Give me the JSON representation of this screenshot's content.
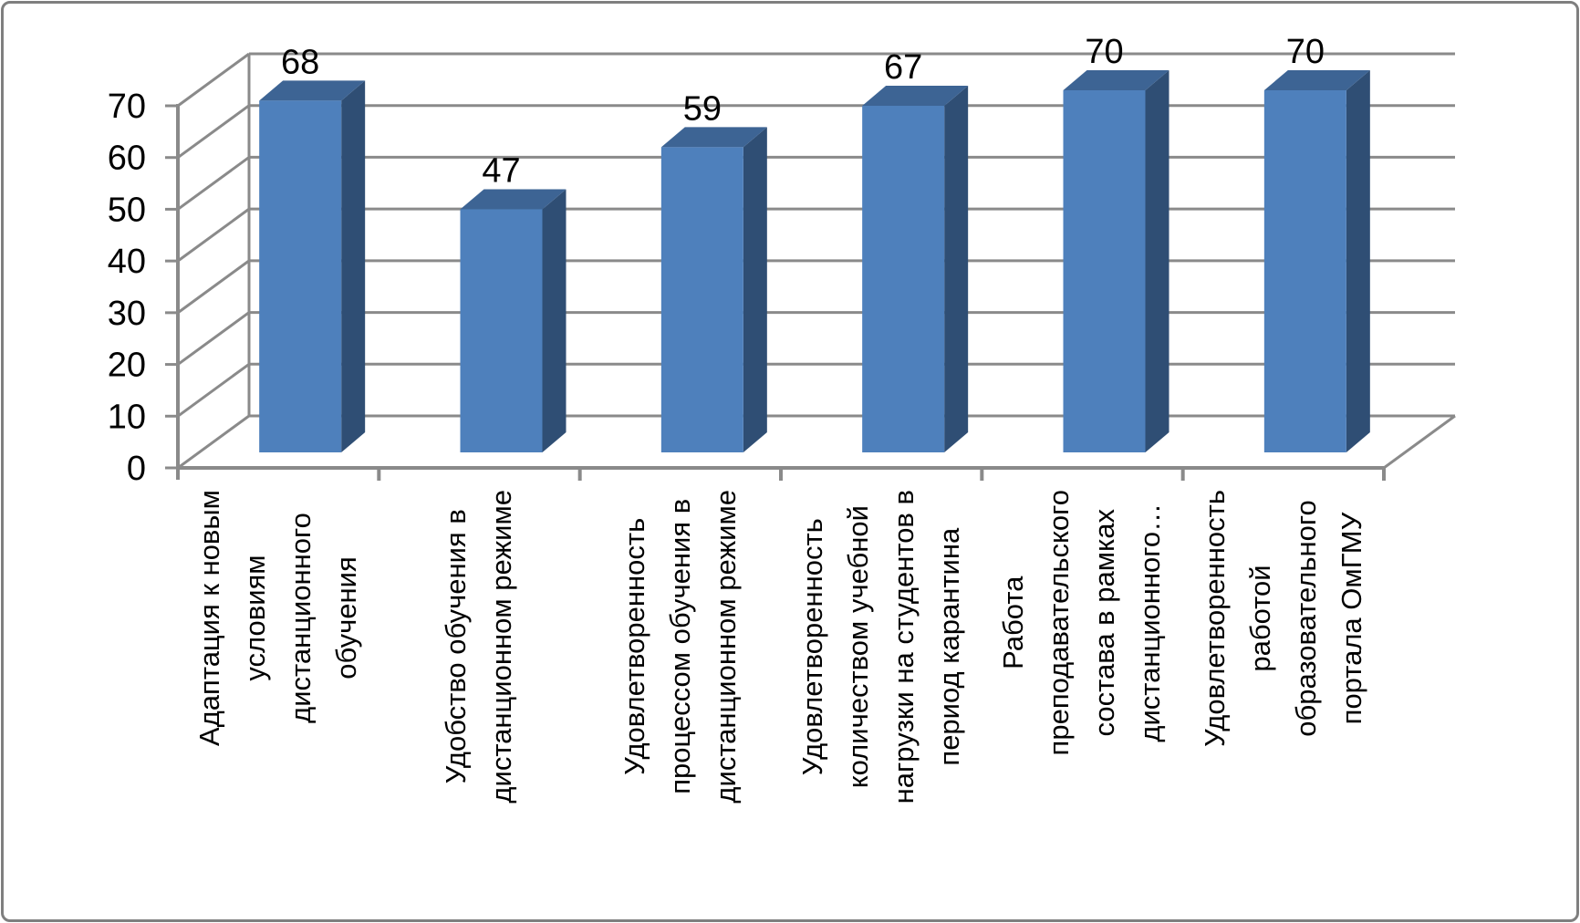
{
  "chart_data": {
    "type": "bar",
    "style": "3d-column",
    "title": "",
    "xlabel": "",
    "ylabel": "",
    "ylim": [
      0,
      70
    ],
    "ytick_step": 10,
    "y_ticks": [
      0,
      10,
      20,
      30,
      40,
      50,
      60,
      70
    ],
    "grid": true,
    "legend": false,
    "data_labels_shown": true,
    "categories": [
      "Адаптация к новым условиям дистанционного обучения",
      "Удобство обучения в дистанционном режиме",
      "Удовлетворенность процессом обучения в дистанционном режиме",
      "Удовлетворенность количеством учебной нагрузки на студентов в период карантина",
      "Работа преподавательского состава в рамках дистанционного…",
      "Удовлетворенность работой образовательного портала ОмГМУ"
    ],
    "categories_lines": [
      [
        "Адаптация к новым",
        "условиям",
        "дистанционного",
        "обучения"
      ],
      [
        "Удобство обучения в",
        "дистанционном режиме"
      ],
      [
        "Удовлетворенность",
        "процессом обучения в",
        "дистанционном режиме"
      ],
      [
        "Удовлетворенность",
        "количеством учебной",
        "нагрузки на студентов в",
        "период карантина"
      ],
      [
        "Работа",
        "преподавательского",
        "состава в рамках",
        "дистанционного…"
      ],
      [
        "Удовлетворенность",
        "работой",
        "образовательного",
        "портала ОмГМУ"
      ]
    ],
    "values": [
      68,
      47,
      59,
      67,
      70,
      70
    ],
    "colors": {
      "bar_front": "#4E80BC",
      "bar_top": "#3D6494",
      "bar_side": "#2F4E74",
      "gridline": "#8A8A8A",
      "axis": "#8A8A8A",
      "text": "#000000",
      "background": "#FFFFFF",
      "border": "#7F7F7F"
    }
  }
}
